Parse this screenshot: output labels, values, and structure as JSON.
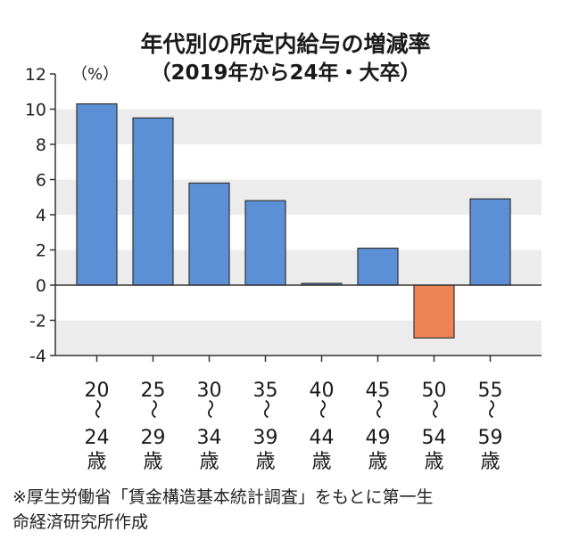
{
  "chart_data": {
    "type": "bar",
    "title": "年代別の所定内給与の増減率",
    "subtitle": "（2019年から24年・大卒）",
    "ylabel": "（%）",
    "xlabel": "",
    "categories": [
      {
        "from": "20",
        "sep": "～",
        "to": "24",
        "unit": "歳"
      },
      {
        "from": "25",
        "sep": "～",
        "to": "29",
        "unit": "歳"
      },
      {
        "from": "30",
        "sep": "～",
        "to": "34",
        "unit": "歳"
      },
      {
        "from": "35",
        "sep": "～",
        "to": "39",
        "unit": "歳"
      },
      {
        "from": "40",
        "sep": "～",
        "to": "44",
        "unit": "歳"
      },
      {
        "from": "45",
        "sep": "～",
        "to": "49",
        "unit": "歳"
      },
      {
        "from": "50",
        "sep": "～",
        "to": "54",
        "unit": "歳"
      },
      {
        "from": "55",
        "sep": "～",
        "to": "59",
        "unit": "歳"
      }
    ],
    "values": [
      10.3,
      9.5,
      5.8,
      4.8,
      0.1,
      2.1,
      -3.0,
      4.9
    ],
    "ylim": [
      -4,
      12
    ],
    "yticks": [
      "12",
      "10",
      "8",
      "6",
      "4",
      "2",
      "0",
      "-2",
      "-4"
    ],
    "grid": "alternating horizontal bands",
    "colors": {
      "positive": "#5b8fd6",
      "negative": "#ee8455",
      "band": "#ececec",
      "axis": "#333333"
    }
  },
  "footnote": {
    "line1": "※厚生労働省「賃金構造基本統計調査」をもとに第一生",
    "line2": "命経済研究所作成"
  }
}
